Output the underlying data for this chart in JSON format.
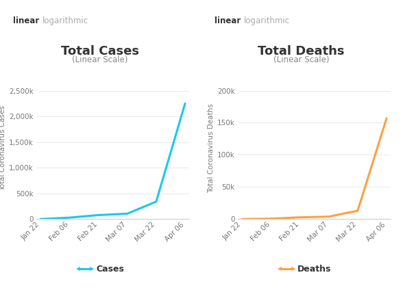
{
  "cases_dates": [
    "Jan 22",
    "Feb 06",
    "Feb 21",
    "Mar 07",
    "Mar 22",
    "Apr 06"
  ],
  "deaths_dates": [
    "Jan 22",
    "Feb 06",
    "Feb 21",
    "Mar 07",
    "Mar 22",
    "Apr 06"
  ],
  "cases_values": [
    600,
    28000,
    77000,
    105000,
    340000,
    2250000
  ],
  "deaths_values": [
    18,
    640,
    2700,
    3800,
    13000,
    157000
  ],
  "cases_yticks": [
    0,
    500000,
    1000000,
    1500000,
    2000000,
    2500000
  ],
  "cases_yticklabels": [
    "0",
    "500k",
    "1,000k",
    "1,500k",
    "2,000k",
    "2,500k"
  ],
  "deaths_yticks": [
    0,
    50000,
    100000,
    150000,
    200000
  ],
  "deaths_yticklabels": [
    "0",
    "50k",
    "100k",
    "150k",
    "200k"
  ],
  "cases_ylim": [
    0,
    2750000
  ],
  "deaths_ylim": [
    0,
    220000
  ],
  "cases_title": "Total Cases",
  "cases_subtitle": "(Linear Scale)",
  "deaths_title": "Total Deaths",
  "deaths_subtitle": "(Linear Scale)",
  "cases_ylabel": "Total Coronavirus Cases",
  "deaths_ylabel": "Total Coronavirus Deaths",
  "cases_color": "#1AC8ED",
  "deaths_color": "#FFA040",
  "tab_active": "linear",
  "tab_inactive": "logarithmic",
  "tab_active_color": "#29B6D8",
  "bg_color": "#ffffff",
  "grid_color": "#e8e8e8",
  "title_fontsize": 13,
  "subtitle_fontsize": 8.5,
  "ylabel_fontsize": 7.5,
  "tick_fontsize": 7.5,
  "legend_label_cases": "Cases",
  "legend_label_deaths": "Deaths"
}
